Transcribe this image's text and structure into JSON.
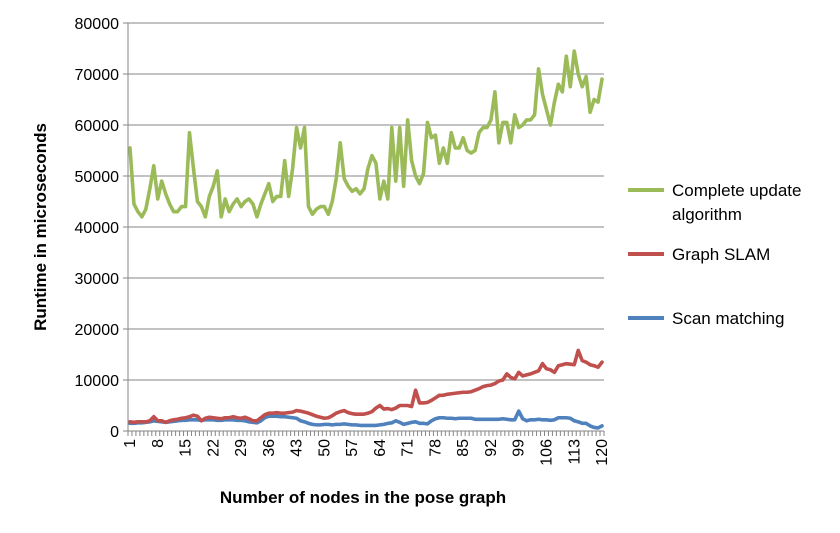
{
  "chart_data": {
    "type": "line",
    "xlabel": "Number of nodes in the pose graph",
    "ylabel": "Runtime in microseconds",
    "xlim": [
      1,
      120
    ],
    "ylim": [
      0,
      80000
    ],
    "y_ticks": [
      "0",
      "10000",
      "20000",
      "30000",
      "40000",
      "50000",
      "60000",
      "70000",
      "80000"
    ],
    "x_ticks": [
      "1",
      "8",
      "15",
      "22",
      "29",
      "36",
      "43",
      "50",
      "57",
      "64",
      "71",
      "78",
      "85",
      "92",
      "99",
      "106",
      "113",
      "120"
    ],
    "grid": "horizontal",
    "legend_position": "right",
    "series": [
      {
        "name": "Complete update algorithm",
        "legend_lines": [
          "Complete update",
          "algorithm"
        ],
        "color": "#9BBB59",
        "values": [
          55500,
          44500,
          43000,
          42000,
          43500,
          47500,
          52000,
          45500,
          49000,
          46500,
          44500,
          43000,
          43000,
          44000,
          44000,
          58500,
          51500,
          45000,
          44000,
          42000,
          46000,
          48000,
          51000,
          42000,
          45500,
          43000,
          44500,
          45500,
          44000,
          45000,
          45500,
          44500,
          42000,
          44500,
          46500,
          48500,
          45000,
          46000,
          46000,
          53000,
          46000,
          51500,
          59500,
          55500,
          59500,
          44000,
          42500,
          43500,
          44000,
          44000,
          42500,
          45000,
          49500,
          56500,
          49500,
          48000,
          47000,
          47500,
          46500,
          47500,
          51500,
          54000,
          52500,
          45500,
          49000,
          45500,
          59500,
          49000,
          59500,
          48000,
          61000,
          53000,
          50000,
          48500,
          50500,
          60500,
          57500,
          58000,
          52500,
          55500,
          52500,
          58500,
          55500,
          55500,
          57500,
          55000,
          54500,
          55000,
          58500,
          59500,
          59500,
          61000,
          66500,
          56500,
          60500,
          60500,
          56500,
          62000,
          59500,
          60000,
          61000,
          61000,
          62000,
          71000,
          66000,
          63000,
          60000,
          64500,
          68000,
          66500,
          73500,
          67500,
          74500,
          70000,
          67500,
          69500,
          62500,
          65000,
          64500,
          69000
        ]
      },
      {
        "name": "Graph SLAM",
        "legend_lines": [
          "Graph SLAM"
        ],
        "color": "#C0504D",
        "values": [
          1800,
          1700,
          1800,
          1800,
          1800,
          2000,
          2800,
          2000,
          2000,
          1700,
          2000,
          2200,
          2300,
          2500,
          2600,
          2800,
          3100,
          2900,
          2000,
          2500,
          2700,
          2600,
          2500,
          2400,
          2600,
          2600,
          2800,
          2600,
          2500,
          2700,
          2400,
          2000,
          2000,
          2600,
          3200,
          3500,
          3500,
          3600,
          3500,
          3500,
          3600,
          3700,
          4000,
          3900,
          3700,
          3500,
          3200,
          2900,
          2700,
          2500,
          2600,
          3000,
          3500,
          3800,
          4000,
          3600,
          3400,
          3300,
          3300,
          3300,
          3500,
          3800,
          4500,
          5000,
          4300,
          4400,
          4200,
          4500,
          5000,
          5000,
          5000,
          4800,
          8000,
          5500,
          5500,
          5600,
          6000,
          6500,
          7000,
          7000,
          7200,
          7300,
          7400,
          7500,
          7600,
          7600,
          7700,
          8000,
          8300,
          8700,
          8900,
          9000,
          9300,
          9800,
          10000,
          11200,
          10500,
          10200,
          11500,
          10800,
          11000,
          11200,
          11500,
          11800,
          13200,
          12200,
          12000,
          11500,
          12800,
          13000,
          13200,
          13100,
          13000,
          15800,
          13800,
          13500,
          13000,
          12800,
          12500,
          13500
        ]
      },
      {
        "name": "Scan matching",
        "legend_lines": [
          "Scan matching"
        ],
        "color": "#4F81BD",
        "values": [
          1500,
          1500,
          1600,
          1600,
          1700,
          1800,
          2000,
          1900,
          1800,
          1700,
          1800,
          1900,
          2000,
          2100,
          2100,
          2200,
          2200,
          2200,
          2100,
          2200,
          2200,
          2200,
          2100,
          2100,
          2200,
          2200,
          2200,
          2100,
          2100,
          2000,
          1800,
          1700,
          1600,
          2000,
          2600,
          2900,
          2900,
          2900,
          2800,
          2800,
          2700,
          2600,
          2500,
          2000,
          1800,
          1500,
          1300,
          1200,
          1200,
          1300,
          1300,
          1200,
          1300,
          1300,
          1400,
          1300,
          1200,
          1200,
          1100,
          1100,
          1100,
          1100,
          1100,
          1200,
          1300,
          1500,
          1600,
          2000,
          1700,
          1300,
          1500,
          1700,
          1800,
          1500,
          1500,
          1400,
          2000,
          2400,
          2600,
          2600,
          2500,
          2500,
          2400,
          2500,
          2500,
          2500,
          2500,
          2300,
          2300,
          2300,
          2300,
          2300,
          2300,
          2300,
          2400,
          2300,
          2200,
          2200,
          3900,
          2400,
          2000,
          2200,
          2200,
          2300,
          2200,
          2200,
          2100,
          2200,
          2600,
          2600,
          2600,
          2500,
          2000,
          1800,
          1500,
          1500,
          1000,
          700,
          600,
          1000
        ]
      }
    ]
  }
}
